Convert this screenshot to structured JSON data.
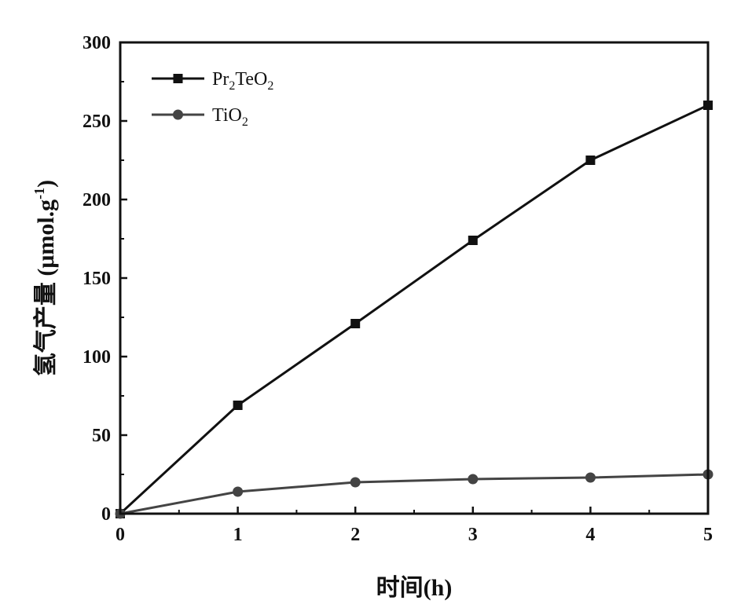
{
  "chart_data": {
    "type": "line",
    "xlabel": "时间(h)",
    "ylabel": "氢气产量 (μmol.g⁻¹)",
    "ylabel_parts": {
      "main": "氢气产量 (μmol.g",
      "sup": "-1",
      "close": ")"
    },
    "x": [
      0,
      1,
      2,
      3,
      4,
      5
    ],
    "xlim": [
      0,
      5
    ],
    "ylim": [
      0,
      300
    ],
    "xticks": [
      0,
      1,
      2,
      3,
      4,
      5
    ],
    "yticks": [
      0,
      50,
      100,
      150,
      200,
      250,
      300
    ],
    "grid": false,
    "legend_position": "top-left",
    "series": [
      {
        "name": "Pr2TeO2",
        "name_parts": [
          {
            "t": "Pr"
          },
          {
            "t": "2",
            "sub": true
          },
          {
            "t": "TeO"
          },
          {
            "t": "2",
            "sub": true
          }
        ],
        "marker": "square",
        "color": "#111111",
        "values": [
          0,
          69,
          121,
          174,
          225,
          260
        ]
      },
      {
        "name": "TiO2",
        "name_parts": [
          {
            "t": "TiO"
          },
          {
            "t": "2",
            "sub": true
          }
        ],
        "marker": "circle",
        "color": "#444444",
        "values": [
          0,
          14,
          20,
          22,
          23,
          25
        ]
      }
    ]
  }
}
